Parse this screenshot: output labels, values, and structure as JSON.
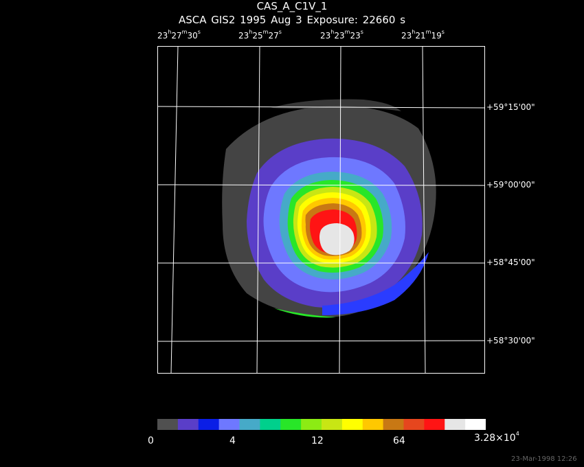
{
  "header": {
    "title": "CAS_A_C1V_1",
    "subtitle": "ASCA GIS2   1995 Aug  3    Exposure: 22660 s"
  },
  "axes": {
    "ra_labels": [
      {
        "h": "23",
        "m": "27",
        "s": "30"
      },
      {
        "h": "23",
        "m": "25",
        "s": "27"
      },
      {
        "h": "23",
        "m": "23",
        "s": "23"
      },
      {
        "h": "23",
        "m": "21",
        "s": "19"
      }
    ],
    "dec_labels": [
      "+59°15'00\"",
      "+59°00'00\"",
      "+58°45'00\"",
      "+58°30'00\""
    ]
  },
  "colorbar": {
    "colors": [
      "#505050",
      "#5a3ec8",
      "#0a1ee6",
      "#6e78ff",
      "#46aac8",
      "#00d08c",
      "#28e628",
      "#8ceb14",
      "#c8e614",
      "#ffff00",
      "#ffc800",
      "#c87814",
      "#e6461e",
      "#ff1414",
      "#e6e6e6",
      "#ffffff"
    ],
    "labels": [
      "0",
      "4",
      "12",
      "64"
    ],
    "max_mantissa": "3.28×10",
    "max_exponent": "4"
  },
  "footer": {
    "timestamp": "23-Mar-1998 12:26"
  },
  "palette": {
    "grid": "#ffffff",
    "background": "#000000"
  }
}
